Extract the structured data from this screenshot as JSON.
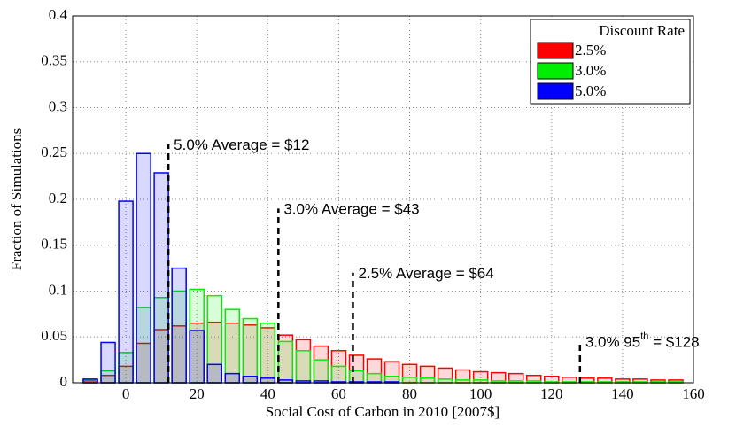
{
  "chart_data": {
    "type": "histogram",
    "xlabel": "Social Cost of Carbon in 2010 [2007$]",
    "ylabel": "Fraction of Simulations",
    "bins": [
      -12.5,
      -7.5,
      -2.5,
      2.5,
      7.5,
      12.5,
      17.5,
      22.5,
      27.5,
      32.5,
      37.5,
      42.5,
      47.5,
      52.5,
      57.5,
      62.5,
      67.5,
      72.5,
      77.5,
      82.5,
      87.5,
      92.5,
      97.5,
      102.5,
      107.5,
      112.5,
      117.5,
      122.5,
      127.5,
      132.5,
      137.5,
      142.5,
      147.5,
      152.5,
      157.5
    ],
    "series": [
      {
        "name": "2.5%",
        "color": "#ff0000",
        "values": [
          0.002,
          0.008,
          0.018,
          0.043,
          0.058,
          0.062,
          0.065,
          0.066,
          0.065,
          0.063,
          0.06,
          0.052,
          0.047,
          0.04,
          0.035,
          0.03,
          0.026,
          0.023,
          0.02,
          0.018,
          0.016,
          0.014,
          0.012,
          0.011,
          0.01,
          0.008,
          0.007,
          0.006,
          0.005,
          0.005,
          0.004,
          0.004,
          0.003,
          0.003
        ]
      },
      {
        "name": "3.0%",
        "color": "#00ee00",
        "values": [
          0.003,
          0.013,
          0.033,
          0.082,
          0.093,
          0.1,
          0.102,
          0.095,
          0.08,
          0.07,
          0.065,
          0.045,
          0.035,
          0.025,
          0.018,
          0.013,
          0.01,
          0.007,
          0.006,
          0.005,
          0.004,
          0.003,
          0.003,
          0.002,
          0.002,
          0.002,
          0.001,
          0.001,
          0.001,
          0.001,
          0.001,
          0.001,
          0.001,
          0.001
        ]
      },
      {
        "name": "5.0%",
        "color": "#0000ff",
        "values": [
          0.004,
          0.044,
          0.198,
          0.25,
          0.229,
          0.125,
          0.057,
          0.02,
          0.01,
          0.007,
          0.005,
          0.003,
          0.002,
          0.002,
          0.001,
          0.001,
          0.001,
          0.001,
          0,
          0,
          0,
          0,
          0,
          0,
          0,
          0,
          0,
          0,
          0,
          0,
          0,
          0,
          0,
          0
        ]
      }
    ],
    "xlim": [
      -15,
      160
    ],
    "xticks": [
      0,
      20,
      40,
      60,
      80,
      100,
      120,
      140,
      160
    ],
    "ylim": [
      0,
      0.4
    ],
    "yticks": [
      0,
      0.05,
      0.1,
      0.15,
      0.2,
      0.25,
      0.3,
      0.35,
      0.4
    ],
    "grid": true,
    "legend": {
      "title": "Discount Rate",
      "position": "upper right"
    },
    "annotations": [
      {
        "x": 12,
        "y": 0.26,
        "text": "5.0% Average = $12"
      },
      {
        "x": 43,
        "y": 0.19,
        "text": "3.0% Average = $43"
      },
      {
        "x": 64,
        "y": 0.12,
        "text": "2.5% Average = $64"
      },
      {
        "x": 128,
        "y": 0.045,
        "text": "3.0% 95",
        "sup": "th",
        "after": " = $128"
      }
    ]
  }
}
